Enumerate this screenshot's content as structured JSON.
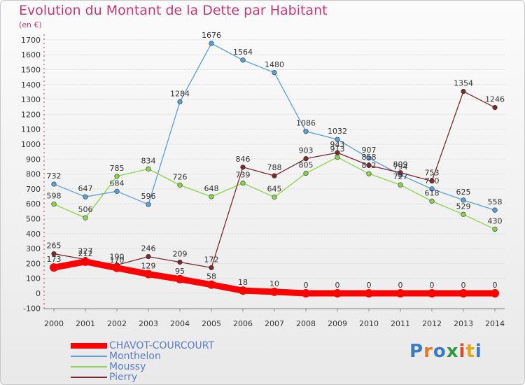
{
  "header": {
    "title": "Evolution du Montant de la Dette par Habitant",
    "unit": "(en €)"
  },
  "logo": {
    "text": "Proxiti"
  },
  "chart_data": {
    "type": "line",
    "title": "Evolution du Montant de la Dette par Habitant",
    "subtitle": "(en €)",
    "xlabel": "",
    "ylabel": "",
    "categories": [
      "2000",
      "2001",
      "2002",
      "2003",
      "2004",
      "2005",
      "2006",
      "2007",
      "2008",
      "2009",
      "2010",
      "2011",
      "2012",
      "2013",
      "2014"
    ],
    "yticks": [
      -100,
      0,
      100,
      200,
      300,
      400,
      500,
      600,
      700,
      800,
      900,
      1000,
      1100,
      1200,
      1300,
      1400,
      1500,
      1600,
      1700
    ],
    "ylim": [
      -100,
      1700
    ],
    "grid": "horizontal",
    "legend_position": "bottom-left",
    "series": [
      {
        "name": "CHAVOT-COURCOURT",
        "color": "#ff0000",
        "values": [
          173,
          212,
          170,
          129,
          95,
          58,
          18,
          10,
          0,
          0,
          0,
          0,
          0,
          0,
          0
        ]
      },
      {
        "name": "Monthelon",
        "color": "#5a9fd6",
        "values": [
          732,
          647,
          684,
          596,
          1284,
          1676,
          1564,
          1480,
          1086,
          1032,
          907,
          794,
          700,
          625,
          558
        ]
      },
      {
        "name": "Moussy",
        "color": "#8ad34a",
        "values": [
          598,
          506,
          785,
          834,
          726,
          648,
          739,
          645,
          805,
          913,
          802,
          727,
          618,
          529,
          430
        ]
      },
      {
        "name": "Pierry",
        "color": "#7a2a2e",
        "values": [
          265,
          227,
          190,
          246,
          209,
          172,
          846,
          788,
          903,
          943,
          858,
          809,
          753,
          1354,
          1246
        ]
      }
    ]
  }
}
